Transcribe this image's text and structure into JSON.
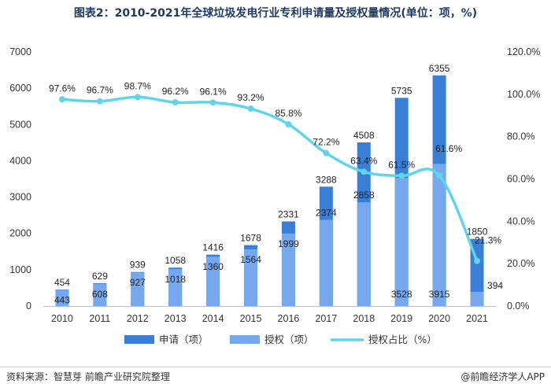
{
  "title": "图表2：2010-2021年全球垃圾发电行业专利申请量及授权量情况(单位：项，%)",
  "source": "资料来源：智慧芽 前瞻产业研究院整理",
  "brand": "@前瞻经济学人APP",
  "chart_data": {
    "type": "bar",
    "categories": [
      "2010",
      "2011",
      "2012",
      "2013",
      "2014",
      "2015",
      "2016",
      "2017",
      "2018",
      "2019",
      "2020",
      "2021"
    ],
    "series": [
      {
        "name": "申请（项）",
        "type": "bar",
        "axis": "left",
        "color": "#3a7fd5",
        "values": [
          454,
          629,
          939,
          1058,
          1416,
          1678,
          2331,
          3288,
          4508,
          5735,
          6355,
          1850
        ]
      },
      {
        "name": "授权（项）",
        "type": "bar",
        "axis": "left",
        "color": "#75a8ec",
        "values": [
          443,
          608,
          927,
          1018,
          1360,
          1564,
          1999,
          2374,
          2858,
          3528,
          3915,
          394
        ]
      },
      {
        "name": "授权占比（%）",
        "type": "line",
        "axis": "right",
        "color": "#5fd5ea",
        "values": [
          97.6,
          96.7,
          98.7,
          96.2,
          96.1,
          93.2,
          85.8,
          72.2,
          63.4,
          61.5,
          61.6,
          21.3
        ],
        "labels": [
          "97.6%",
          "96.7%",
          "98.7%",
          "96.2%",
          "96.1%",
          "93.2%",
          "85.8%",
          "72.2%",
          "63.4%",
          "61.5%",
          "61.6%",
          "21.3%"
        ]
      }
    ],
    "y_left": {
      "min": 0,
      "max": 7000,
      "ticks": [
        "0",
        "1000",
        "2000",
        "3000",
        "4000",
        "5000",
        "6000",
        "7000"
      ]
    },
    "y_right": {
      "min": 0,
      "max": 120,
      "ticks": [
        "0.0%",
        "20.0%",
        "40.0%",
        "60.0%",
        "80.0%",
        "100.0%",
        "120.0%"
      ]
    },
    "legend": [
      "申请（项）",
      "授权（项）",
      "授权占比（%）"
    ],
    "legend_position": "bottom"
  }
}
